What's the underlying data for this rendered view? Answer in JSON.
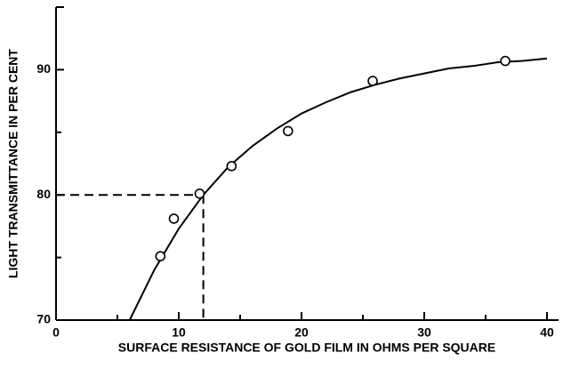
{
  "chart_data": {
    "type": "scatter",
    "xlabel": "SURFACE RESISTANCE OF GOLD FILM IN OHMS PER SQUARE",
    "ylabel": "LIGHT TRANSMITTANCE IN PER CENT",
    "xlim": [
      0,
      40
    ],
    "ylim": [
      70,
      95
    ],
    "xticks": [
      0,
      10,
      20,
      30,
      40
    ],
    "yticks": [
      70,
      80,
      90
    ],
    "xminor": [
      5,
      15,
      25,
      35
    ],
    "yminor": [
      75,
      85
    ],
    "color": "#000000",
    "points": {
      "x": [
        8.5,
        9.6,
        11.7,
        14.3,
        18.9,
        25.8,
        36.6
      ],
      "values": [
        75.1,
        78.1,
        80.1,
        82.3,
        85.1,
        89.1,
        90.7
      ]
    },
    "curve": {
      "x": [
        6,
        8,
        10,
        12,
        14,
        16,
        18,
        20,
        22,
        24,
        26,
        28,
        30,
        32,
        34,
        36,
        38,
        40
      ],
      "values": [
        70.0,
        74.0,
        77.3,
        80.0,
        82.2,
        83.9,
        85.3,
        86.5,
        87.4,
        88.2,
        88.8,
        89.3,
        89.7,
        90.1,
        90.3,
        90.6,
        90.7,
        90.9
      ]
    },
    "reference": {
      "x": 12,
      "y": 80
    }
  }
}
